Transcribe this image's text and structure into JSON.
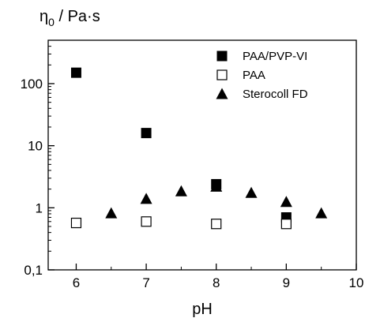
{
  "chart_data": {
    "type": "scatter",
    "title": "",
    "ylabel_symbol": "η",
    "ylabel_subscript": "0",
    "ylabel_unit": " / Pa·s",
    "xlabel": "pH",
    "xlim": [
      5.6,
      10
    ],
    "ylim": [
      0.1,
      500
    ],
    "yscale": "log",
    "x_ticks": [
      6,
      7,
      8,
      9,
      10
    ],
    "x_tick_labels": [
      "6",
      "7",
      "8",
      "9",
      "10"
    ],
    "y_ticks": [
      0.1,
      1,
      10,
      100
    ],
    "y_tick_labels": [
      "0,1",
      "1",
      "10",
      "100"
    ],
    "legend_position": "top-right",
    "grid": false,
    "series": [
      {
        "name": "PAA/PVP-VI",
        "marker": "filled-square",
        "color": "#000000",
        "x": [
          6,
          7,
          8,
          9
        ],
        "y": [
          150,
          16,
          2.4,
          0.7
        ]
      },
      {
        "name": "PAA",
        "marker": "open-square",
        "color": "#000000",
        "x": [
          6,
          7,
          8,
          9
        ],
        "y": [
          0.57,
          0.6,
          0.55,
          0.55
        ]
      },
      {
        "name": "Sterocoll FD",
        "marker": "filled-triangle",
        "color": "#000000",
        "x": [
          6.5,
          7,
          7.5,
          8,
          8.5,
          9,
          9.5
        ],
        "y": [
          0.82,
          1.4,
          1.85,
          2.2,
          1.75,
          1.25,
          0.82
        ]
      }
    ]
  }
}
